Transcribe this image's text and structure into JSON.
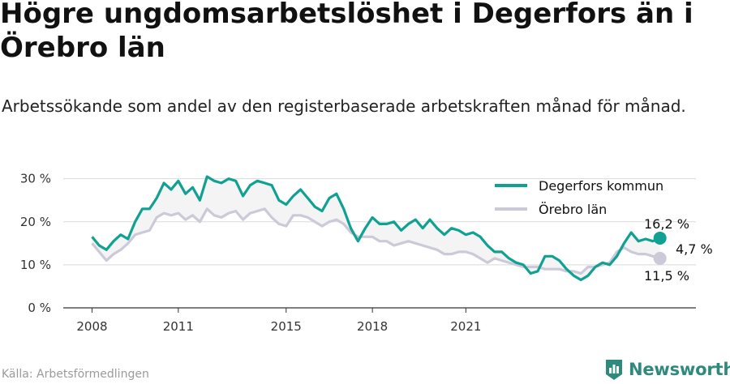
{
  "title": "Högre ungdomsarbetslöshet i Degerfors än i Örebro län",
  "subtitle": "Arbetssökande som andel av den registerbaserade arbetskraften månad för månad.",
  "source": "Källa: Arbetsförmedlingen",
  "brand": "Newsworthy",
  "end_labels": {
    "degerfors": "16,2 %",
    "diff": "4,7 %",
    "orebro": "11,5 %"
  },
  "colors": {
    "degerfors": "#11a193",
    "orebro": "#cccad9",
    "fill": "#f4f4f4",
    "axis": "#333333",
    "grid": "#d9d9d9"
  },
  "chart_data": {
    "type": "line",
    "x_ticks": [
      "2008",
      "2011",
      "2015",
      "2018",
      "2021"
    ],
    "y_ticks": [
      "0 %",
      "10 %",
      "20 %",
      "30 %"
    ],
    "ylim": [
      0,
      32
    ],
    "legend_position": "top-right",
    "series": [
      {
        "name": "Degerfors kommun",
        "color": "#11a193",
        "points": [
          [
            2008.0,
            16.5
          ],
          [
            2008.25,
            14.5
          ],
          [
            2008.5,
            13.5
          ],
          [
            2008.75,
            15.5
          ],
          [
            2009.0,
            17.0
          ],
          [
            2009.25,
            16.0
          ],
          [
            2009.5,
            20.0
          ],
          [
            2009.75,
            23.0
          ],
          [
            2010.0,
            23.0
          ],
          [
            2010.25,
            25.5
          ],
          [
            2010.5,
            29.0
          ],
          [
            2010.75,
            27.5
          ],
          [
            2011.0,
            29.5
          ],
          [
            2011.25,
            26.5
          ],
          [
            2011.5,
            28.0
          ],
          [
            2011.75,
            25.0
          ],
          [
            2012.0,
            30.5
          ],
          [
            2012.25,
            29.5
          ],
          [
            2012.5,
            29.0
          ],
          [
            2012.75,
            30.0
          ],
          [
            2013.0,
            29.5
          ],
          [
            2013.25,
            26.0
          ],
          [
            2013.5,
            28.5
          ],
          [
            2013.75,
            29.5
          ],
          [
            2014.0,
            29.0
          ],
          [
            2014.25,
            28.5
          ],
          [
            2014.5,
            25.0
          ],
          [
            2014.75,
            24.0
          ],
          [
            2015.0,
            26.0
          ],
          [
            2015.25,
            27.5
          ],
          [
            2015.5,
            25.5
          ],
          [
            2015.75,
            23.5
          ],
          [
            2016.0,
            22.5
          ],
          [
            2016.25,
            25.5
          ],
          [
            2016.5,
            26.5
          ],
          [
            2016.75,
            23.0
          ],
          [
            2017.0,
            18.5
          ],
          [
            2017.25,
            15.5
          ],
          [
            2017.5,
            18.5
          ],
          [
            2017.75,
            21.0
          ],
          [
            2018.0,
            19.5
          ],
          [
            2018.25,
            19.5
          ],
          [
            2018.5,
            20.0
          ],
          [
            2018.75,
            18.0
          ],
          [
            2019.0,
            19.5
          ],
          [
            2019.25,
            20.5
          ],
          [
            2019.5,
            18.5
          ],
          [
            2019.75,
            20.5
          ],
          [
            2020.0,
            18.5
          ],
          [
            2020.25,
            17.0
          ],
          [
            2020.5,
            18.5
          ],
          [
            2020.75,
            18.0
          ],
          [
            2021.0,
            17.0
          ],
          [
            2021.25,
            17.5
          ],
          [
            2021.5,
            16.5
          ],
          [
            2021.75,
            14.5
          ],
          [
            2022.0,
            13.0
          ],
          [
            2022.25,
            13.0
          ],
          [
            2022.5,
            11.5
          ],
          [
            2022.75,
            10.5
          ],
          [
            2023.0,
            10.0
          ],
          [
            2023.25,
            8.0
          ],
          [
            2023.5,
            8.5
          ],
          [
            2023.75,
            12.0
          ],
          [
            2024.0,
            12.0
          ],
          [
            2024.25,
            11.0
          ],
          [
            2024.5,
            9.0
          ],
          [
            2024.75,
            7.5
          ],
          [
            2025.0,
            6.5
          ],
          [
            2025.25,
            7.5
          ],
          [
            2025.5,
            9.5
          ],
          [
            2025.75,
            10.5
          ],
          [
            2026.0,
            10.0
          ],
          [
            2026.25,
            12.0
          ],
          [
            2026.5,
            15.0
          ],
          [
            2026.75,
            17.5
          ],
          [
            2027.0,
            15.5
          ],
          [
            2027.25,
            16.0
          ],
          [
            2027.5,
            15.5
          ],
          [
            2027.75,
            16.2
          ]
        ]
      },
      {
        "name": "Örebro län",
        "color": "#cccad9",
        "points": [
          [
            2008.0,
            15.0
          ],
          [
            2008.25,
            13.0
          ],
          [
            2008.5,
            11.0
          ],
          [
            2008.75,
            12.5
          ],
          [
            2009.0,
            13.5
          ],
          [
            2009.25,
            15.0
          ],
          [
            2009.5,
            17.0
          ],
          [
            2009.75,
            17.5
          ],
          [
            2010.0,
            18.0
          ],
          [
            2010.25,
            21.0
          ],
          [
            2010.5,
            22.0
          ],
          [
            2010.75,
            21.5
          ],
          [
            2011.0,
            22.0
          ],
          [
            2011.25,
            20.5
          ],
          [
            2011.5,
            21.5
          ],
          [
            2011.75,
            20.0
          ],
          [
            2012.0,
            23.0
          ],
          [
            2012.25,
            21.5
          ],
          [
            2012.5,
            21.0
          ],
          [
            2012.75,
            22.0
          ],
          [
            2013.0,
            22.5
          ],
          [
            2013.25,
            20.5
          ],
          [
            2013.5,
            22.0
          ],
          [
            2013.75,
            22.5
          ],
          [
            2014.0,
            23.0
          ],
          [
            2014.25,
            21.0
          ],
          [
            2014.5,
            19.5
          ],
          [
            2014.75,
            19.0
          ],
          [
            2015.0,
            21.5
          ],
          [
            2015.25,
            21.5
          ],
          [
            2015.5,
            21.0
          ],
          [
            2015.75,
            20.0
          ],
          [
            2016.0,
            19.0
          ],
          [
            2016.25,
            20.0
          ],
          [
            2016.5,
            20.5
          ],
          [
            2016.75,
            19.5
          ],
          [
            2017.0,
            17.5
          ],
          [
            2017.25,
            16.5
          ],
          [
            2017.5,
            16.5
          ],
          [
            2017.75,
            16.5
          ],
          [
            2018.0,
            15.5
          ],
          [
            2018.25,
            15.5
          ],
          [
            2018.5,
            14.5
          ],
          [
            2018.75,
            15.0
          ],
          [
            2019.0,
            15.5
          ],
          [
            2019.25,
            15.0
          ],
          [
            2019.5,
            14.5
          ],
          [
            2019.75,
            14.0
          ],
          [
            2020.0,
            13.5
          ],
          [
            2020.25,
            12.5
          ],
          [
            2020.5,
            12.5
          ],
          [
            2020.75,
            13.0
          ],
          [
            2021.0,
            13.0
          ],
          [
            2021.25,
            12.5
          ],
          [
            2021.5,
            11.5
          ],
          [
            2021.75,
            10.5
          ],
          [
            2022.0,
            11.5
          ],
          [
            2022.25,
            11.0
          ],
          [
            2022.5,
            10.5
          ],
          [
            2022.75,
            10.0
          ],
          [
            2023.0,
            9.5
          ],
          [
            2023.25,
            9.5
          ],
          [
            2023.5,
            9.5
          ],
          [
            2023.75,
            9.0
          ],
          [
            2024.0,
            9.0
          ],
          [
            2024.25,
            9.0
          ],
          [
            2024.5,
            8.5
          ],
          [
            2024.75,
            8.5
          ],
          [
            2025.0,
            8.0
          ],
          [
            2025.25,
            9.5
          ],
          [
            2025.5,
            9.5
          ],
          [
            2025.75,
            10.0
          ],
          [
            2026.0,
            10.5
          ],
          [
            2026.25,
            13.0
          ],
          [
            2026.5,
            14.0
          ],
          [
            2026.75,
            13.0
          ],
          [
            2027.0,
            12.5
          ],
          [
            2027.25,
            12.5
          ],
          [
            2027.5,
            12.0
          ],
          [
            2027.75,
            11.5
          ]
        ]
      }
    ]
  }
}
